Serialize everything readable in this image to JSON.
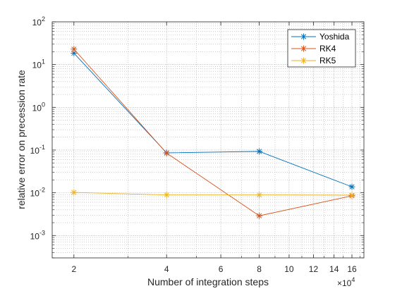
{
  "chart_data": {
    "type": "line",
    "xlabel": "Number of integration steps",
    "ylabel": "relative error on precession rate",
    "x_scale": "log",
    "y_scale": "log",
    "x_multiplier_label": "×10",
    "x_multiplier_exponent": "4",
    "x": [
      20000,
      40000,
      80000,
      160000
    ],
    "xlim": [
      17000,
      175000
    ],
    "ylim": [
      0.0003,
      100
    ],
    "x_ticks": [
      {
        "value": 20000,
        "label": "2"
      },
      {
        "value": 40000,
        "label": "4"
      },
      {
        "value": 60000,
        "label": "6"
      },
      {
        "value": 80000,
        "label": "8"
      },
      {
        "value": 100000,
        "label": "10"
      },
      {
        "value": 120000,
        "label": "12"
      },
      {
        "value": 140000,
        "label": "14"
      },
      {
        "value": 160000,
        "label": "16"
      }
    ],
    "y_ticks": [
      {
        "value": 0.001,
        "base": "10",
        "exp": "-3"
      },
      {
        "value": 0.01,
        "base": "10",
        "exp": "-2"
      },
      {
        "value": 0.1,
        "base": "10",
        "exp": "-1"
      },
      {
        "value": 1,
        "base": "10",
        "exp": "0"
      },
      {
        "value": 10,
        "base": "10",
        "exp": "1"
      },
      {
        "value": 100,
        "base": "10",
        "exp": "2"
      }
    ],
    "grid": true,
    "minor_grid": true,
    "legend_position": "top-right",
    "series": [
      {
        "name": "Yoshida",
        "color": "#0072BD",
        "marker": "asterisk",
        "values": [
          18.5,
          0.086,
          0.093,
          0.0138
        ]
      },
      {
        "name": "RK4",
        "color": "#D95319",
        "marker": "asterisk",
        "values": [
          23.0,
          0.085,
          0.0029,
          0.0085
        ]
      },
      {
        "name": "RK5",
        "color": "#EDB120",
        "marker": "asterisk",
        "values": [
          0.0102,
          0.0089,
          0.0089,
          0.0088
        ]
      }
    ]
  }
}
